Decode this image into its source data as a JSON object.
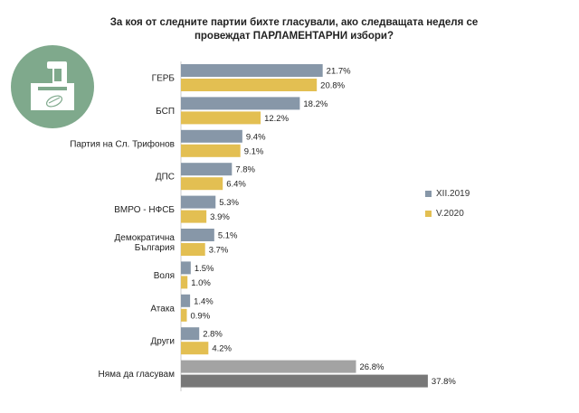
{
  "chart_data": {
    "type": "bar",
    "orientation": "horizontal",
    "title_line1": "За коя от следните партии бихте гласували, ако следващата неделя се",
    "title_line2": "провеждат ПАРЛАМЕНТАРНИ избори?",
    "categories": [
      [
        "ГЕРБ"
      ],
      [
        "БСП"
      ],
      [
        "Партия на Сл. Трифонов"
      ],
      [
        "ДПС"
      ],
      [
        "ВМРО - НФСБ"
      ],
      [
        "Демократична",
        "България"
      ],
      [
        "Воля"
      ],
      [
        "Атака"
      ],
      [
        "Други"
      ],
      [
        "Няма да гласувам"
      ]
    ],
    "series": [
      {
        "name": "XII.2019",
        "color": "#8797a8",
        "highlight_color": "#a3a3a3",
        "values": [
          21.7,
          18.2,
          9.4,
          7.8,
          5.3,
          5.1,
          1.5,
          1.4,
          2.8,
          26.8
        ]
      },
      {
        "name": "V.2020",
        "color": "#e3bf52",
        "highlight_color": "#787878",
        "values": [
          20.8,
          12.2,
          9.1,
          6.4,
          3.9,
          3.7,
          1.0,
          0.9,
          4.2,
          37.8
        ]
      }
    ],
    "value_suffix": "%",
    "legend_position": "right",
    "xlim": [
      0,
      40
    ]
  },
  "logo": {
    "icon": "ballot-box-icon",
    "color": "#7fa98c"
  }
}
